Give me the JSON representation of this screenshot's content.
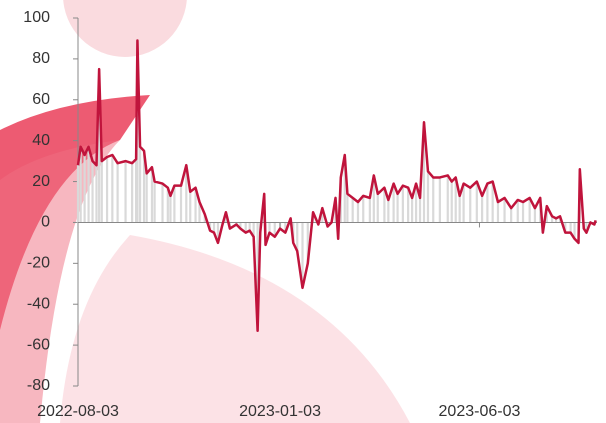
{
  "chart_data": {
    "type": "line",
    "x": [
      "2022-08-03",
      "2022-08-05",
      "2022-08-08",
      "2022-08-11",
      "2022-08-14",
      "2022-08-17",
      "2022-08-19",
      "2022-08-21",
      "2022-08-25",
      "2022-08-29",
      "2022-09-02",
      "2022-09-08",
      "2022-09-13",
      "2022-09-16",
      "2022-09-17",
      "2022-09-19",
      "2022-09-22",
      "2022-09-24",
      "2022-09-28",
      "2022-09-30",
      "2022-10-06",
      "2022-10-10",
      "2022-10-12",
      "2022-10-15",
      "2022-10-20",
      "2022-10-24",
      "2022-10-27",
      "2022-10-31",
      "2022-11-03",
      "2022-11-07",
      "2022-11-11",
      "2022-11-14",
      "2022-11-17",
      "2022-11-20",
      "2022-11-23",
      "2022-11-26",
      "2022-12-01",
      "2022-12-04",
      "2022-12-08",
      "2022-12-11",
      "2022-12-14",
      "2022-12-17",
      "2022-12-19",
      "2022-12-22",
      "2022-12-23",
      "2022-12-26",
      "2022-12-30",
      "2023-01-03",
      "2023-01-07",
      "2023-01-11",
      "2023-01-13",
      "2023-01-16",
      "2023-01-20",
      "2023-01-24",
      "2023-01-28",
      "2023-02-01",
      "2023-02-04",
      "2023-02-08",
      "2023-02-11",
      "2023-02-14",
      "2023-02-16",
      "2023-02-18",
      "2023-02-21",
      "2023-02-23",
      "2023-02-27",
      "2023-03-03",
      "2023-03-07",
      "2023-03-12",
      "2023-03-15",
      "2023-03-18",
      "2023-03-23",
      "2023-03-26",
      "2023-03-30",
      "2023-04-02",
      "2023-04-06",
      "2023-04-10",
      "2023-04-13",
      "2023-04-16",
      "2023-04-19",
      "2023-04-22",
      "2023-04-25",
      "2023-04-29",
      "2023-05-04",
      "2023-05-10",
      "2023-05-13",
      "2023-05-16",
      "2023-05-19",
      "2023-05-22",
      "2023-05-27",
      "2023-06-01",
      "2023-06-05",
      "2023-06-09",
      "2023-06-13",
      "2023-06-17",
      "2023-06-22",
      "2023-06-27",
      "2023-07-02",
      "2023-07-06",
      "2023-07-11",
      "2023-07-15",
      "2023-07-19",
      "2023-07-21",
      "2023-07-24",
      "2023-07-28",
      "2023-07-31",
      "2023-08-03",
      "2023-08-07",
      "2023-08-11",
      "2023-08-14",
      "2023-08-17",
      "2023-08-18",
      "2023-08-21",
      "2023-08-23",
      "2023-08-26",
      "2023-08-29",
      "2023-08-30"
    ],
    "series": [
      {
        "color": "#c0143c",
        "bar_color": "#d9d9d9",
        "values": [
          28,
          37,
          33,
          37,
          30,
          28,
          75,
          30,
          32,
          33,
          29,
          30,
          29,
          31,
          89,
          37,
          35,
          24,
          27,
          20,
          19,
          17,
          13,
          18,
          18,
          28,
          15,
          17,
          10,
          4,
          -4,
          -5,
          -10,
          -2,
          5,
          -3,
          -1,
          -3,
          -5,
          -4,
          -7,
          -53,
          -5,
          14,
          -11,
          -5,
          -7,
          -3,
          -5,
          2,
          -10,
          -14,
          -32,
          -20,
          5,
          -1,
          7,
          -2,
          0,
          12,
          -8,
          22,
          33,
          14,
          12,
          10,
          13,
          12,
          23,
          14,
          17,
          11,
          19,
          14,
          18,
          17,
          12,
          19,
          12,
          49,
          25,
          22,
          22,
          23,
          20,
          22,
          13,
          19,
          17,
          20,
          13,
          19,
          20,
          10,
          12,
          7,
          11,
          10,
          12,
          7,
          12,
          -5,
          8,
          3,
          2,
          3,
          -5,
          -5,
          -8,
          -10,
          26,
          -3,
          -5,
          0,
          -1,
          1
        ]
      }
    ],
    "xlim": [
      "2022-08-03",
      "2023-08-31"
    ],
    "xticks": [
      "2022-08-03",
      "2023-01-03",
      "2023-06-03"
    ],
    "ylim": [
      -80,
      100
    ],
    "yticks": [
      -80,
      -60,
      -40,
      -20,
      0,
      20,
      40,
      60,
      80,
      100
    ]
  }
}
